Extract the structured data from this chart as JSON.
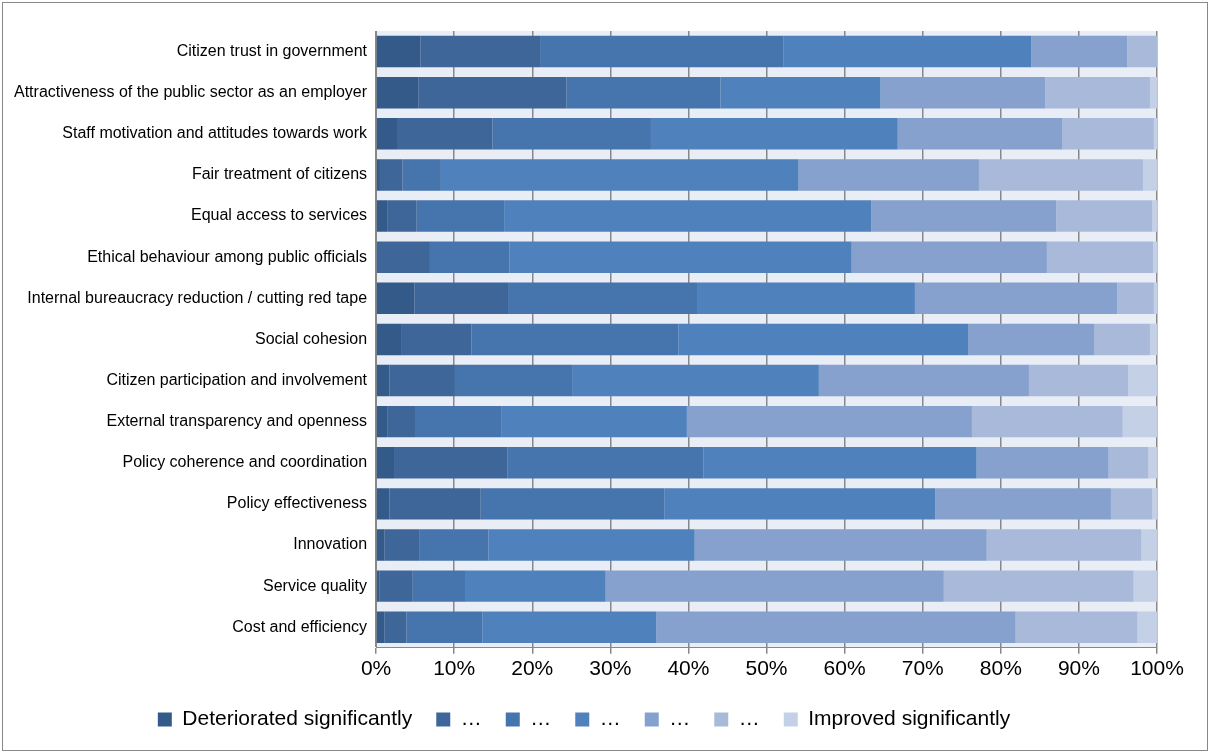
{
  "chart_data": {
    "type": "bar",
    "orientation": "horizontal",
    "stacked": true,
    "categories": [
      "Citizen trust in government",
      "Attractiveness of the public sector as an employer",
      "Staff motivation and attitudes towards work",
      "Fair treatment of citizens",
      "Equal access to services",
      "Ethical behaviour among public officials",
      "Internal bureaucracy reduction / cutting red tape",
      "Social cohesion",
      "Citizen participation and involvement",
      "External transparency and openness",
      "Policy coherence and coordination",
      "Policy effectiveness",
      "Innovation",
      "Service quality",
      "Cost and efficiency"
    ],
    "series": [
      {
        "name": "Deteriorated significantly",
        "color": "#345a8a",
        "values": [
          5.7,
          5.4,
          2.8,
          0.5,
          1.5,
          0,
          4.9,
          3.2,
          1.7,
          1.5,
          2.3,
          1.7,
          1.1,
          0.4,
          1.1
        ]
      },
      {
        "name": "…",
        "color": "#3e6699",
        "values": [
          15.3,
          19.0,
          12.1,
          2.9,
          3.7,
          6.9,
          12.0,
          9.0,
          8.4,
          3.6,
          14.5,
          11.7,
          4.5,
          4.3,
          2.8
        ]
      },
      {
        "name": "…",
        "color": "#4674ad",
        "values": [
          31.2,
          19.7,
          20.3,
          4.9,
          11.2,
          10.2,
          24.2,
          26.5,
          15.0,
          11.0,
          25.1,
          23.5,
          8.8,
          6.8,
          9.7
        ]
      },
      {
        "name": "…",
        "color": "#4f81bd",
        "values": [
          31.7,
          20.5,
          31.6,
          45.8,
          47.0,
          43.8,
          27.9,
          37.1,
          31.6,
          23.7,
          35.0,
          34.7,
          26.4,
          17.9,
          22.3
        ]
      },
      {
        "name": "…",
        "color": "#86a1cd",
        "values": [
          12.3,
          21.1,
          21.1,
          23.1,
          23.7,
          25.0,
          25.9,
          16.2,
          26.9,
          36.5,
          16.9,
          22.5,
          37.4,
          43.3,
          46.0
        ]
      },
      {
        "name": "…",
        "color": "#a9b9da",
        "values": [
          3.8,
          13.4,
          11.7,
          21.0,
          12.3,
          13.6,
          4.7,
          7.1,
          12.7,
          19.3,
          5.1,
          5.3,
          19.8,
          24.3,
          15.6
        ]
      },
      {
        "name": "Improved significantly",
        "color": "#c4d0e6",
        "values": [
          0,
          0.9,
          0.4,
          1.8,
          0.6,
          0.5,
          0.4,
          0.9,
          3.7,
          4.4,
          1.1,
          0.6,
          2.0,
          3.0,
          2.5
        ]
      }
    ],
    "xlim": [
      0,
      100
    ],
    "xticks": [
      {
        "value": 0,
        "label": "0%"
      },
      {
        "value": 10,
        "label": "10%"
      },
      {
        "value": 20,
        "label": "20%"
      },
      {
        "value": 30,
        "label": "30%"
      },
      {
        "value": 40,
        "label": "40%"
      },
      {
        "value": 50,
        "label": "50%"
      },
      {
        "value": 60,
        "label": "60%"
      },
      {
        "value": 70,
        "label": "70%"
      },
      {
        "value": 80,
        "label": "80%"
      },
      {
        "value": 90,
        "label": "90%"
      },
      {
        "value": 100,
        "label": "100%"
      }
    ],
    "grid": "x",
    "legend": "bottom"
  }
}
